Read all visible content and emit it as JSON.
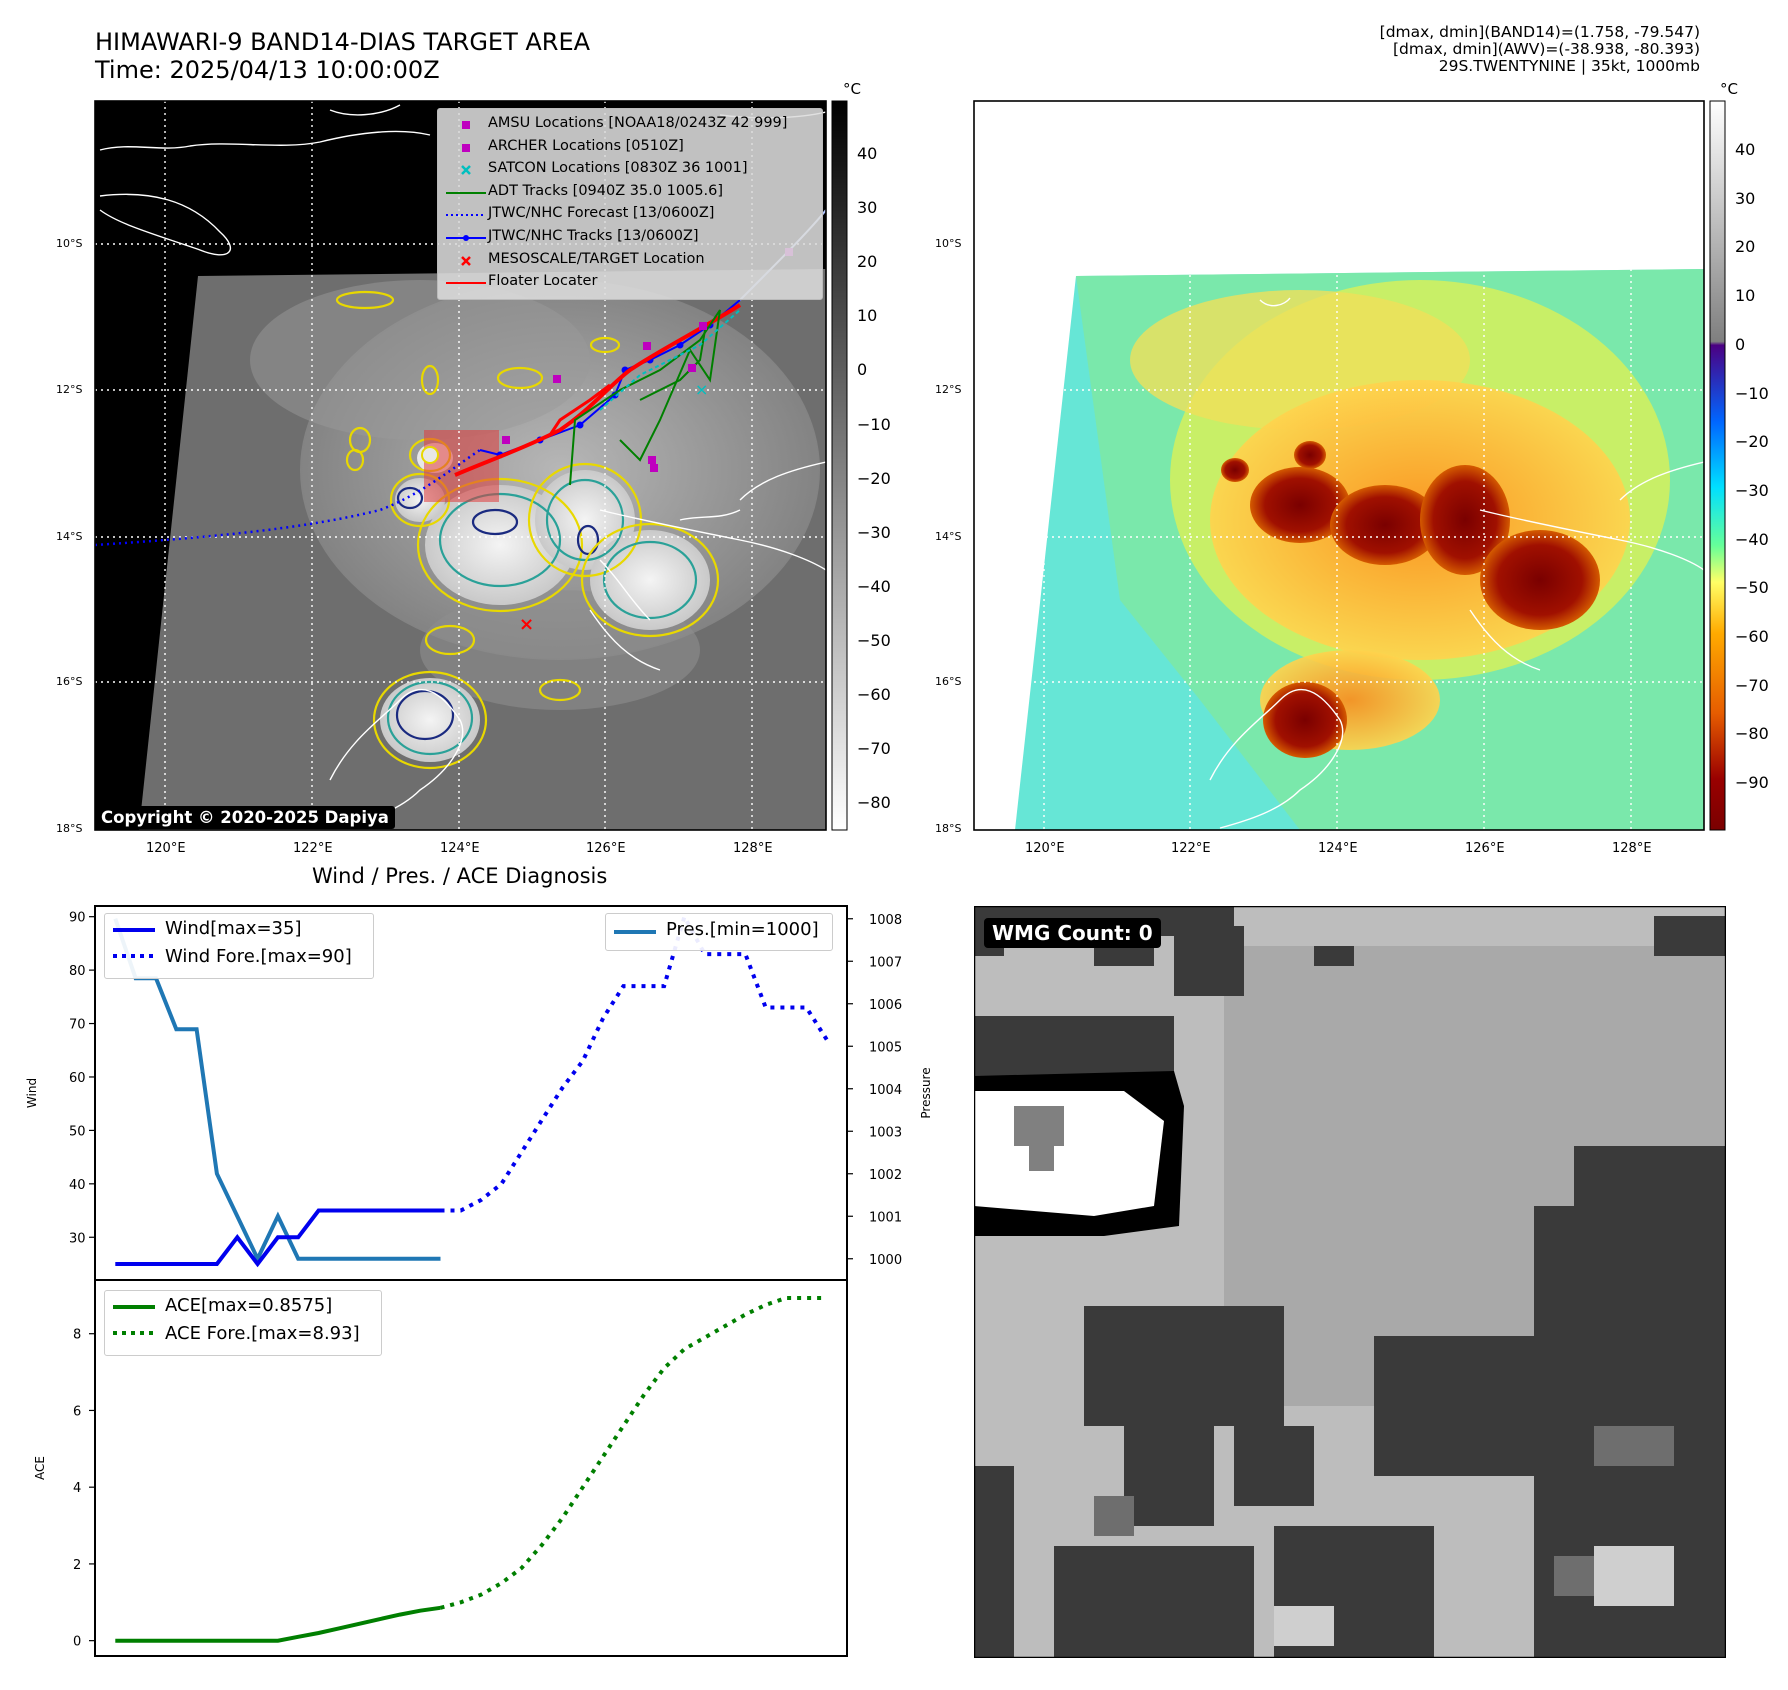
{
  "header": {
    "title_line1": "HIMAWARI-9 BAND14-DIAS TARGET AREA",
    "title_line2": "Time: 2025/04/13 10:00:00Z",
    "info_line1": "[dmax, dmin](BAND14)=(1.758, -79.547)",
    "info_line2": "[dmax, dmin](AWV)=(-38.938, -80.393)",
    "info_line3": "29S.TWENTYNINE | 35kt, 1000mb"
  },
  "map": {
    "lon_ticks": [
      "120°E",
      "122°E",
      "124°E",
      "126°E",
      "128°E"
    ],
    "lat_ticks": [
      "10°S",
      "12°S",
      "14°S",
      "16°S",
      "18°S"
    ],
    "copyright": "Copyright © 2020-2025 Dapiya",
    "legend": [
      {
        "label": "AMSU Locations [NOAA18/0243Z 42 999]",
        "color": "#bf00bf",
        "marker": "square"
      },
      {
        "label": "ARCHER Locations [0510Z]",
        "color": "#bf00bf",
        "marker": "square"
      },
      {
        "label": "SATCON Locations [0830Z 36 1001]",
        "color": "#00bfbf",
        "marker": "x"
      },
      {
        "label": "ADT Tracks [0940Z 35.0 1005.6]",
        "color": "#008000",
        "marker": "line"
      },
      {
        "label": "JTWC/NHC Forecast [13/0600Z]",
        "color": "#0000ff",
        "marker": "dotted"
      },
      {
        "label": "JTWC/NHC Tracks [13/0600Z]",
        "color": "#0000ff",
        "marker": "line-dot"
      },
      {
        "label": "MESOSCALE/TARGET Location",
        "color": "#ff0000",
        "marker": "x"
      },
      {
        "label": "Floater Locater",
        "color": "#ff0000",
        "marker": "line"
      }
    ]
  },
  "colorbar_gray": {
    "unit": "°C",
    "ticks": [
      "40",
      "30",
      "20",
      "10",
      "0",
      "−10",
      "−20",
      "−30",
      "−40",
      "−50",
      "−60",
      "−70",
      "−80"
    ]
  },
  "colorbar_color": {
    "unit": "°C",
    "ticks": [
      "40",
      "30",
      "20",
      "10",
      "0",
      "−10",
      "−20",
      "−30",
      "−40",
      "−50",
      "−60",
      "−70",
      "−80",
      "−90"
    ]
  },
  "diagnosis": {
    "title": "Wind / Pres. / ACE Diagnosis",
    "wind_ylabel": "Wind",
    "pres_ylabel": "Pressure",
    "ace_ylabel": "ACE",
    "wind_legend": [
      "Wind[max=35]",
      "Wind Fore.[max=90]"
    ],
    "pres_legend": [
      "Pres.[min=1000]"
    ],
    "ace_legend": [
      "ACE[max=0.8575]",
      "ACE Fore.[max=8.93]"
    ]
  },
  "wmg": {
    "label": "WMG Count: 0"
  },
  "chart_data": [
    {
      "type": "line",
      "title": "Wind / Pres. / ACE Diagnosis",
      "ylabel": "Wind",
      "ylim": [
        22,
        92
      ],
      "xlim": [
        -1,
        36
      ],
      "yticks": [
        30,
        40,
        50,
        60,
        70,
        80,
        90
      ],
      "series": [
        {
          "name": "Wind[max=35]",
          "style": "solid",
          "color": "#0000ee",
          "x": [
            0,
            1,
            2,
            3,
            4,
            5,
            6,
            7,
            8,
            9,
            10,
            11,
            12,
            13,
            14,
            15,
            16
          ],
          "y": [
            25,
            25,
            25,
            25,
            25,
            25,
            30,
            25,
            30,
            30,
            35,
            35,
            35,
            35,
            35,
            35,
            35
          ]
        },
        {
          "name": "Wind Fore.[max=90]",
          "style": "dotted",
          "color": "#0000ee",
          "x": [
            16,
            17,
            18,
            19,
            20,
            21,
            22,
            23,
            24,
            25,
            26,
            27,
            28,
            29,
            30,
            31,
            32,
            33,
            34,
            35
          ],
          "y": [
            35,
            35,
            37,
            40,
            46,
            52,
            58,
            63,
            71,
            77,
            77,
            77,
            90,
            83,
            83,
            83,
            73,
            73,
            73,
            67
          ]
        }
      ]
    },
    {
      "type": "line",
      "ylabel": "Pressure",
      "ylim": [
        999.5,
        1008.3
      ],
      "yticks": [
        1000,
        1001,
        1002,
        1003,
        1004,
        1005,
        1006,
        1007,
        1008
      ],
      "series": [
        {
          "name": "Pres.[min=1000]",
          "style": "solid",
          "color": "#1f77b4",
          "x": [
            0,
            1,
            2,
            3,
            4,
            5,
            6,
            7,
            8,
            9,
            10,
            11,
            12,
            13,
            14,
            15,
            16
          ],
          "y": [
            1008,
            1006.6,
            1006.6,
            1005.4,
            1005.4,
            1002,
            1001,
            1000,
            1001,
            1000,
            1000,
            1000,
            1000,
            1000,
            1000,
            1000,
            1000
          ]
        }
      ]
    },
    {
      "type": "line",
      "ylabel": "ACE",
      "ylim": [
        -0.4,
        9.4
      ],
      "yticks": [
        0,
        2,
        4,
        6,
        8
      ],
      "series": [
        {
          "name": "ACE[max=0.8575]",
          "style": "solid",
          "color": "#007f00",
          "x": [
            0,
            1,
            2,
            3,
            4,
            5,
            6,
            7,
            8,
            9,
            10,
            11,
            12,
            13,
            14,
            15,
            16
          ],
          "y": [
            0,
            0,
            0,
            0,
            0,
            0,
            0,
            0,
            0,
            0.1,
            0.2,
            0.32,
            0.44,
            0.56,
            0.68,
            0.78,
            0.8575
          ]
        },
        {
          "name": "ACE Fore.[max=8.93]",
          "style": "dotted",
          "color": "#007f00",
          "x": [
            16,
            17,
            18,
            19,
            20,
            21,
            22,
            23,
            24,
            25,
            26,
            27,
            28,
            29,
            30,
            31,
            32,
            33,
            34,
            35
          ],
          "y": [
            0.8575,
            1.0,
            1.2,
            1.5,
            1.9,
            2.5,
            3.2,
            4.0,
            4.8,
            5.6,
            6.4,
            7.1,
            7.6,
            7.9,
            8.2,
            8.5,
            8.75,
            8.93,
            8.93,
            8.93
          ]
        }
      ]
    }
  ]
}
